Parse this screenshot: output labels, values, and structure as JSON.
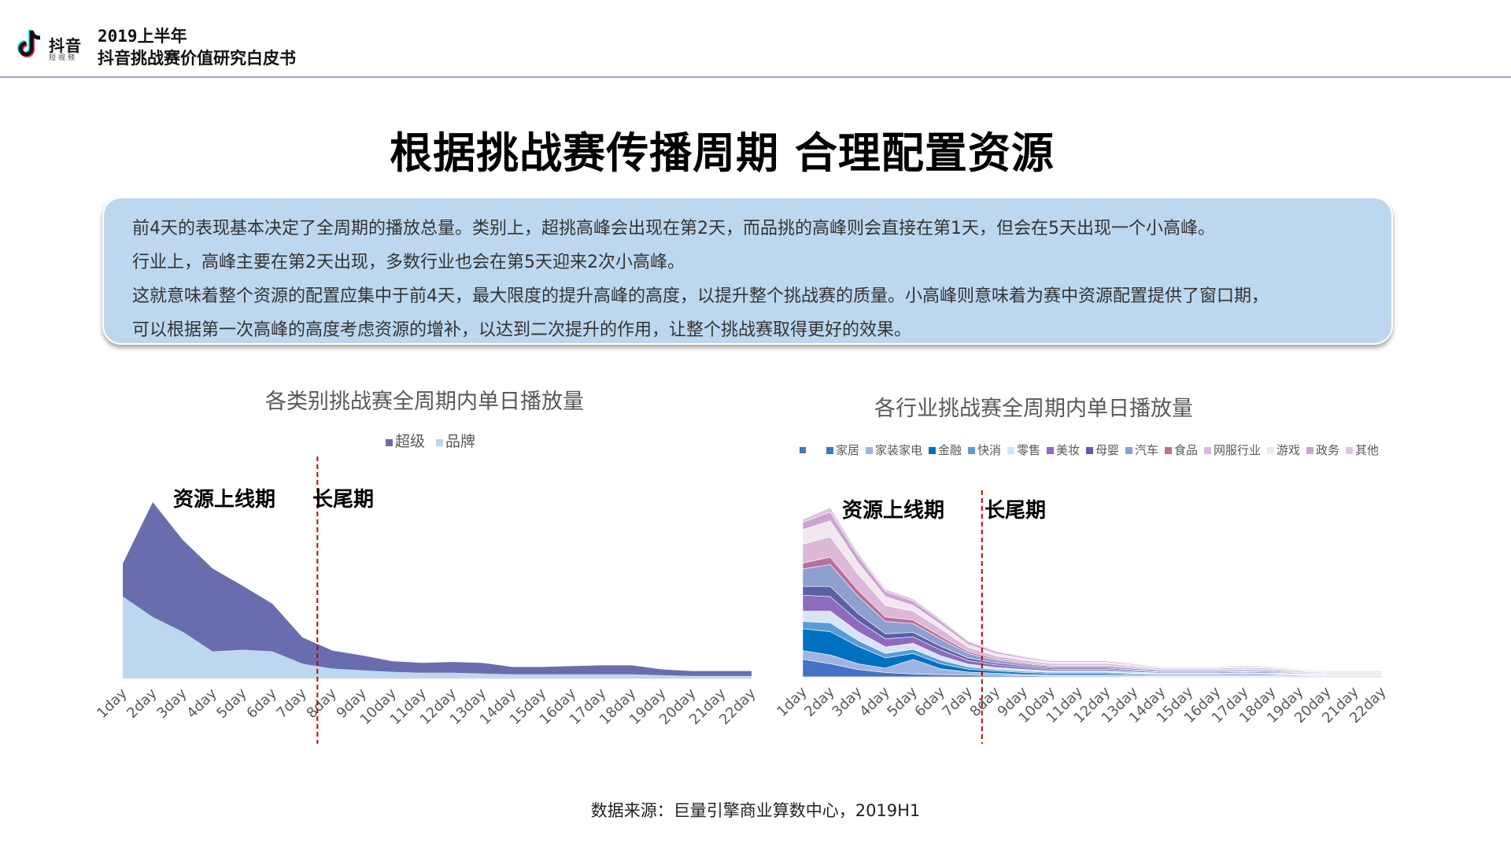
{
  "header": {
    "logo_word": "抖音",
    "logo_sub": "短视频",
    "line1": "2019上半年",
    "line2": "抖音挑战赛价值研究白皮书"
  },
  "title": "根据挑战赛传播周期 合理配置资源",
  "summary": [
    "前4天的表现基本决定了全周期的播放总量。类别上，超挑高峰会出现在第2天，而品挑的高峰则会直接在第1天，但会在5天出现一个小高峰。",
    "行业上，高峰主要在第2天出现，多数行业也会在第5天迎来2次小高峰。",
    "这就意味着整个资源的配置应集中于前4天，最大限度的提升高峰的高度，以提升整个挑战赛的质量。小高峰则意味着为赛中资源配置提供了窗口期，",
    "可以根据第一次高峰的高度考虑资源的增补，以达到二次提升的作用，让整个挑战赛取得更好的效果。"
  ],
  "phases": {
    "launch": "资源上线期",
    "tail": "长尾期"
  },
  "source": "数据来源：巨量引擎商业算数中心，2019H1",
  "colors": {
    "header_rule": "#a99bd1",
    "summary_bg": "#bdd7ee",
    "divider": "#c00000"
  },
  "chart_data": [
    {
      "type": "area",
      "stacked": true,
      "title": "各类别挑战赛全周期内单日播放量",
      "xlabel": "",
      "ylabel": "",
      "x": [
        "1day",
        "2day",
        "3day",
        "4day",
        "5day",
        "6day",
        "7day",
        "8day",
        "9day",
        "10day",
        "11day",
        "12day",
        "13day",
        "14day",
        "15day",
        "16day",
        "17day",
        "18day",
        "19day",
        "20day",
        "21day",
        "22day"
      ],
      "series": [
        {
          "name": "品牌",
          "color": "#bdd7ee",
          "values": [
            100,
            75,
            57,
            33,
            35,
            33,
            18,
            12,
            10,
            8,
            7,
            7,
            6,
            5,
            5,
            5,
            5,
            5,
            4,
            3,
            3,
            3
          ]
        },
        {
          "name": "超级",
          "color": "#6a6dad",
          "values": [
            40,
            140,
            112,
            101,
            78,
            58,
            32,
            22,
            18,
            13,
            12,
            13,
            13,
            9,
            9,
            10,
            11,
            11,
            7,
            6,
            6,
            6
          ]
        }
      ],
      "legend_position": "top-center",
      "divider_between": [
        "7day",
        "8day"
      ],
      "grid": false
    },
    {
      "type": "area",
      "stacked": true,
      "title": "各行业挑战赛全周期内单日播放量",
      "xlabel": "",
      "ylabel": "",
      "x": [
        "1day",
        "2day",
        "3day",
        "4day",
        "5day",
        "6day",
        "7day",
        "8day",
        "9day",
        "10day",
        "11day",
        "12day",
        "13day",
        "14day",
        "15day",
        "16day",
        "17day",
        "18day",
        "19day",
        "20day",
        "21day",
        "22day"
      ],
      "legend_position": "top",
      "legend_leading_marker": "#4472c4",
      "divider_between": [
        "7day",
        "8day"
      ],
      "grid": false,
      "series": [
        {
          "name": "家居",
          "color": "#4472c4",
          "values": [
            24,
            18,
            10,
            6,
            4,
            3,
            2.5,
            2,
            1.5,
            1.2,
            1.2,
            1.2,
            1,
            0.8,
            0.8,
            0.8,
            0.8,
            0.8,
            0.6,
            0.5,
            0.5,
            0.5
          ]
        },
        {
          "name": "家装家电",
          "color": "#9fb4e0",
          "values": [
            12,
            12,
            8,
            6,
            20,
            8,
            4,
            3,
            2,
            1.5,
            1.5,
            1.5,
            1.2,
            1,
            1,
            1,
            1,
            1,
            0.8,
            0.6,
            0.6,
            0.6
          ]
        },
        {
          "name": "金融",
          "color": "#0070c0",
          "values": [
            30,
            32,
            24,
            14,
            8,
            7,
            4,
            3,
            2.5,
            2,
            2,
            2,
            1.5,
            1.2,
            1.2,
            1.2,
            1.4,
            1.2,
            1,
            0.8,
            0.8,
            0.8
          ]
        },
        {
          "name": "快消",
          "color": "#5b9bd5",
          "values": [
            10,
            12,
            8,
            6,
            6,
            5,
            3,
            2,
            1.8,
            1.5,
            1.5,
            1.5,
            1.2,
            1,
            1,
            1,
            1,
            1,
            0.8,
            0.6,
            0.6,
            0.6
          ]
        },
        {
          "name": "零售",
          "color": "#d6e4f5",
          "values": [
            14,
            16,
            12,
            9,
            8,
            6,
            4,
            3,
            2.5,
            2,
            2,
            2,
            1.6,
            1.3,
            1.3,
            1.3,
            1.4,
            1.3,
            1,
            0.8,
            0.8,
            0.8
          ]
        },
        {
          "name": "美妆",
          "color": "#8e6bbd",
          "values": [
            22,
            20,
            15,
            11,
            9,
            8,
            5,
            3.5,
            2.8,
            2.2,
            2.2,
            2.2,
            1.8,
            1.4,
            1.4,
            1.4,
            1.6,
            1.4,
            1.1,
            0.9,
            0.9,
            0.9
          ]
        },
        {
          "name": "母婴",
          "color": "#5c5fa3",
          "values": [
            12,
            14,
            10,
            7,
            6,
            5,
            3.5,
            2.5,
            2,
            1.6,
            1.6,
            1.6,
            1.3,
            1,
            1,
            1,
            1.1,
            1,
            0.8,
            0.6,
            0.6,
            0.6
          ]
        },
        {
          "name": "汽车",
          "color": "#8da0cf",
          "values": [
            24,
            30,
            24,
            17,
            12,
            10,
            6,
            4,
            3.2,
            2.5,
            2.5,
            2.5,
            2,
            1.6,
            1.6,
            1.6,
            1.8,
            1.6,
            1.2,
            1,
            1,
            1
          ]
        },
        {
          "name": "食品",
          "color": "#b9709a",
          "values": [
            8,
            10,
            8,
            6,
            5,
            4,
            2.5,
            1.8,
            1.5,
            1.2,
            1.2,
            1.2,
            1,
            0.8,
            0.8,
            0.8,
            0.9,
            0.8,
            0.6,
            0.5,
            0.5,
            0.5
          ]
        },
        {
          "name": "网服行业",
          "color": "#dcb9d8",
          "values": [
            26,
            28,
            22,
            16,
            12,
            10,
            6,
            4,
            3.2,
            2.6,
            2.6,
            2.6,
            2.1,
            1.7,
            1.7,
            1.7,
            2,
            1.8,
            1.3,
            1.1,
            1.1,
            1.1
          ]
        },
        {
          "name": "游戏",
          "color": "#f2e6f0",
          "values": [
            20,
            22,
            16,
            12,
            8,
            6,
            4,
            3,
            2.4,
            1.9,
            1.9,
            1.9,
            1.5,
            1.2,
            1.2,
            1.2,
            1.4,
            1.3,
            1,
            0.8,
            0.8,
            0.8
          ]
        },
        {
          "name": "政务",
          "color": "#c9a5cf",
          "values": [
            10,
            12,
            9,
            7,
            6,
            5,
            3.5,
            2.6,
            2,
            1.6,
            1.6,
            1.6,
            1.3,
            1,
            1,
            1,
            1.2,
            1,
            0.8,
            0.7,
            0.7,
            0.7
          ]
        },
        {
          "name": "其他",
          "color": "#dfc3e3",
          "values": [
            4,
            6,
            4,
            3,
            3,
            2.5,
            1.5,
            1.2,
            1,
            0.8,
            0.8,
            0.8,
            0.7,
            0.6,
            0.6,
            0.6,
            0.7,
            0.6,
            0.5,
            0.4,
            0.4,
            0.4
          ]
        }
      ]
    }
  ]
}
